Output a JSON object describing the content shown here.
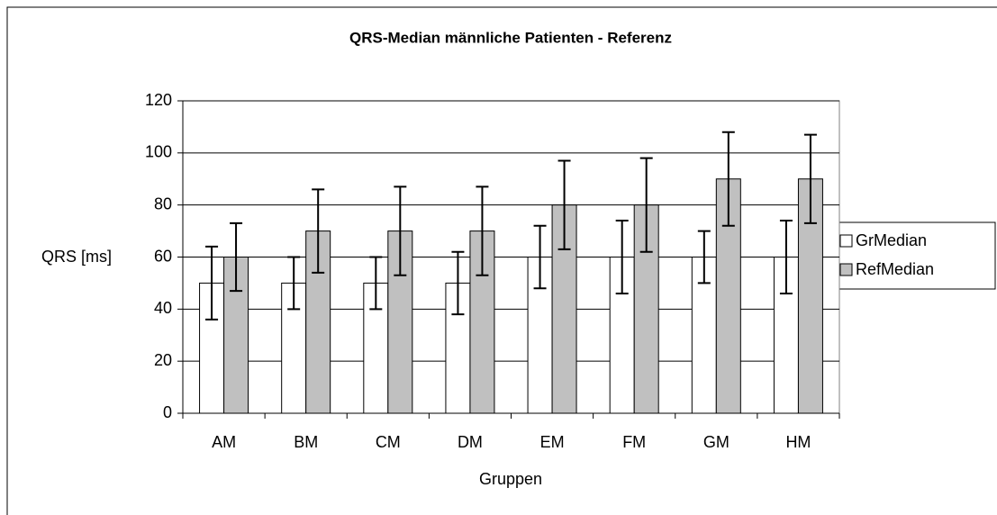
{
  "chart_data": {
    "type": "bar",
    "title": "QRS-Median männliche Patienten - Referenz",
    "xlabel": "Gruppen",
    "ylabel": "QRS [ms]",
    "categories": [
      "AM",
      "BM",
      "CM",
      "DM",
      "EM",
      "FM",
      "GM",
      "HM"
    ],
    "series": [
      {
        "name": "GrMedian",
        "color": "#ffffff",
        "values": [
          50,
          50,
          50,
          50,
          60,
          60,
          60,
          60
        ],
        "errors": [
          14,
          10,
          10,
          12,
          12,
          14,
          10,
          14
        ]
      },
      {
        "name": "RefMedian",
        "color": "#c0c0c0",
        "values": [
          60,
          70,
          70,
          70,
          80,
          80,
          90,
          90
        ],
        "errors": [
          13,
          16,
          17,
          17,
          17,
          18,
          18,
          17
        ]
      }
    ],
    "ylim": [
      0,
      120
    ],
    "yticks": [
      0,
      20,
      40,
      60,
      80,
      100,
      120
    ],
    "grid": true,
    "legend": "right"
  }
}
